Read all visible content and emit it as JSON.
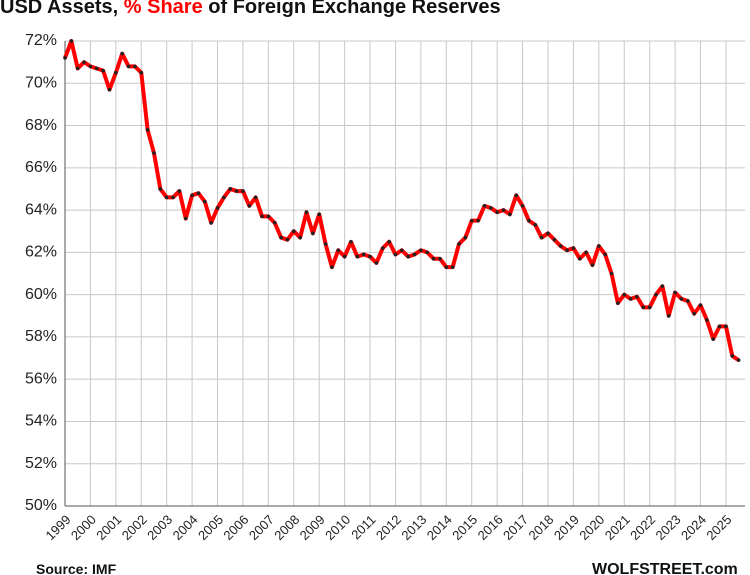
{
  "chart_data": {
    "type": "line",
    "title": "USD Assets,",
    "title_highlight": "% Share",
    "title_rest": "of Foreign Exchange Reserves",
    "source": "Source: IMF",
    "brand": "WOLFSTREET.com",
    "x": [
      1999,
      1999.25,
      1999.5,
      1999.75,
      2000,
      2000.25,
      2000.5,
      2000.75,
      2001,
      2001.25,
      2001.5,
      2001.75,
      2002,
      2002.25,
      2002.5,
      2002.75,
      2003,
      2003.25,
      2003.5,
      2003.75,
      2004,
      2004.25,
      2004.5,
      2004.75,
      2005,
      2005.25,
      2005.5,
      2005.75,
      2006,
      2006.25,
      2006.5,
      2006.75,
      2007,
      2007.25,
      2007.5,
      2007.75,
      2008,
      2008.25,
      2008.5,
      2008.75,
      2009,
      2009.25,
      2009.5,
      2009.75,
      2010,
      2010.25,
      2010.5,
      2010.75,
      2011,
      2011.25,
      2011.5,
      2011.75,
      2012,
      2012.25,
      2012.5,
      2012.75,
      2013,
      2013.25,
      2013.5,
      2013.75,
      2014,
      2014.25,
      2014.5,
      2014.75,
      2015,
      2015.25,
      2015.5,
      2015.75,
      2016,
      2016.25,
      2016.5,
      2016.75,
      2017,
      2017.25,
      2017.5,
      2017.75,
      2018,
      2018.25,
      2018.5,
      2018.75,
      2019,
      2019.25,
      2019.5,
      2019.75,
      2020,
      2020.25,
      2020.5,
      2020.75,
      2021,
      2021.25,
      2021.5,
      2021.75,
      2022,
      2022.25,
      2022.5,
      2022.75,
      2023,
      2023.25,
      2023.5,
      2023.75,
      2024,
      2024.25,
      2024.5,
      2024.75,
      2025,
      2025.25,
      2025.5
    ],
    "series": [
      {
        "color": "#ff0000",
        "marker_color": "#222222",
        "values": [
          71.2,
          72.0,
          70.7,
          71.0,
          70.8,
          70.7,
          70.6,
          69.7,
          70.5,
          71.4,
          70.8,
          70.8,
          70.5,
          67.8,
          66.7,
          65.0,
          64.6,
          64.6,
          64.9,
          63.6,
          64.7,
          64.8,
          64.4,
          63.4,
          64.1,
          64.6,
          65.0,
          64.9,
          64.9,
          64.2,
          64.6,
          63.7,
          63.7,
          63.4,
          62.7,
          62.6,
          63.0,
          62.7,
          63.9,
          62.9,
          63.8,
          62.4,
          61.3,
          62.1,
          61.8,
          62.5,
          61.8,
          61.9,
          61.8,
          61.5,
          62.2,
          62.5,
          61.9,
          62.1,
          61.8,
          61.9,
          62.1,
          62.0,
          61.7,
          61.7,
          61.3,
          61.3,
          62.4,
          62.7,
          63.5,
          63.5,
          64.2,
          64.1,
          63.9,
          64.0,
          63.8,
          64.7,
          64.2,
          63.5,
          63.3,
          62.7,
          62.9,
          62.6,
          62.3,
          62.1,
          62.2,
          61.7,
          62.0,
          61.4,
          62.3,
          61.9,
          61.0,
          59.6,
          60.0,
          59.8,
          59.9,
          59.4,
          59.4,
          60.0,
          60.4,
          59.0,
          60.1,
          59.8,
          59.7,
          59.1,
          59.5,
          58.8,
          57.9,
          58.5,
          58.5,
          57.1,
          56.9
        ]
      }
    ],
    "xlim": [
      1999,
      2025.75
    ],
    "xticks": [
      1999,
      2000,
      2001,
      2002,
      2003,
      2004,
      2005,
      2006,
      2007,
      2008,
      2009,
      2010,
      2011,
      2012,
      2013,
      2014,
      2015,
      2016,
      2017,
      2018,
      2019,
      2020,
      2021,
      2022,
      2023,
      2024,
      2025
    ],
    "ylim": [
      50,
      72
    ],
    "yticks": [
      {
        "value": 50,
        "label": "50%"
      },
      {
        "value": 52,
        "label": "52%"
      },
      {
        "value": 54,
        "label": "54%"
      },
      {
        "value": 56,
        "label": "56%"
      },
      {
        "value": 58,
        "label": "58%"
      },
      {
        "value": 60,
        "label": "60%"
      },
      {
        "value": 62,
        "label": "62%"
      },
      {
        "value": 64,
        "label": "64%"
      },
      {
        "value": 66,
        "label": "66%"
      },
      {
        "value": 68,
        "label": "68%"
      },
      {
        "value": 70,
        "label": "70%"
      },
      {
        "value": 72,
        "label": "72%"
      }
    ],
    "grid": true
  }
}
